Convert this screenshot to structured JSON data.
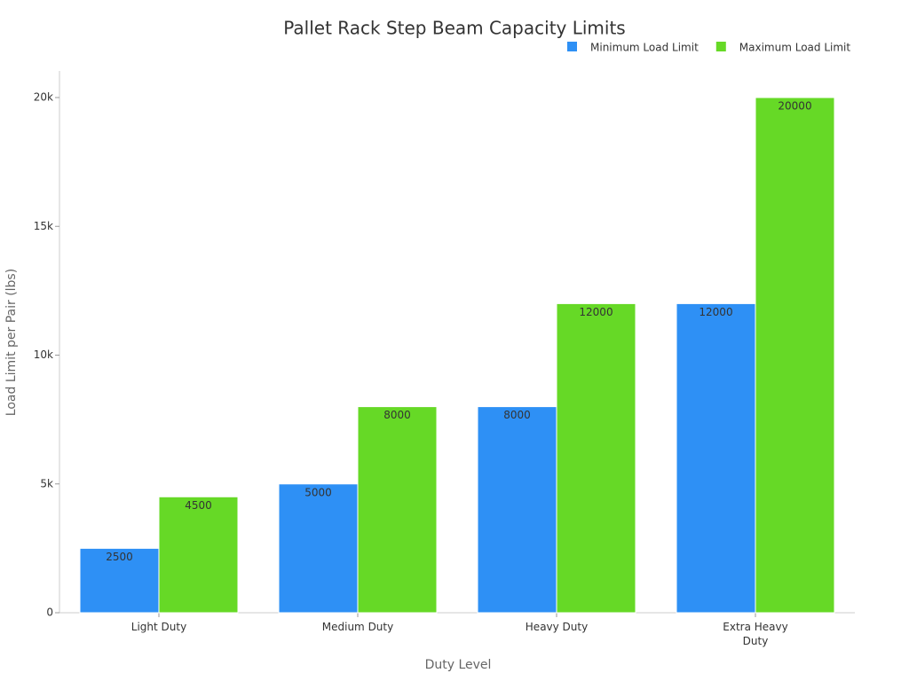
{
  "chart_data": {
    "type": "bar",
    "title": "Pallet Rack Step Beam Capacity Limits",
    "x_label": "Duty Level",
    "y_label": "Load Limit per Pair (lbs)",
    "categories": [
      "Light Duty",
      "Medium Duty",
      "Heavy Duty",
      "Extra Heavy Duty"
    ],
    "series": [
      {
        "name": "Minimum Load Limit",
        "color": "#2e90f5",
        "values": [
          2500,
          5000,
          8000,
          12000
        ]
      },
      {
        "name": "Maximum Load Limit",
        "color": "#66d926",
        "values": [
          4500,
          8000,
          12000,
          20000
        ]
      }
    ],
    "ylim": [
      0,
      21000
    ],
    "yticks": [
      0,
      {
        "value": 5000,
        "label": "5k"
      },
      {
        "value": 10000,
        "label": "10k"
      },
      {
        "value": 15000,
        "label": "15k"
      },
      {
        "value": 20000,
        "label": "20k"
      }
    ],
    "legend": "top-right"
  }
}
